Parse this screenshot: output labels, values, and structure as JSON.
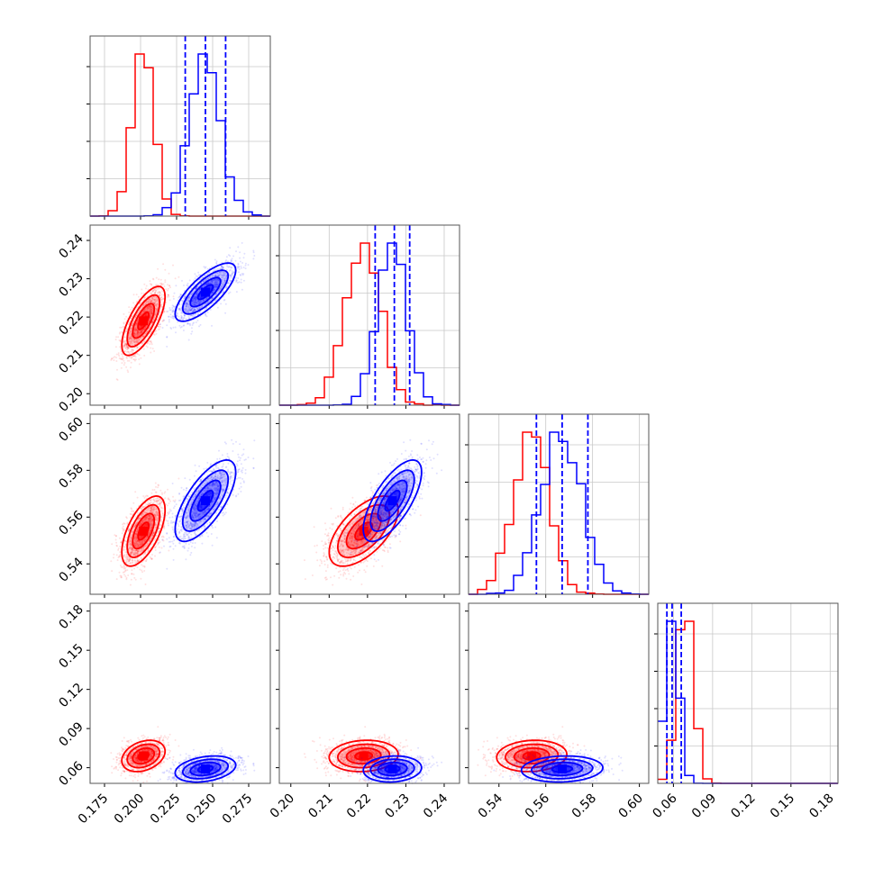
{
  "chart_data": {
    "type": "corner",
    "parameters": [
      {
        "range": [
          0.165,
          0.29
        ],
        "ticks": [
          0.175,
          0.2,
          0.225,
          0.25,
          0.275
        ],
        "tick_labels": [
          "0.175",
          "0.200",
          "0.225",
          "0.250",
          "0.275"
        ]
      },
      {
        "range": [
          0.197,
          0.244
        ],
        "ticks": [
          0.2,
          0.21,
          0.22,
          0.23,
          0.24
        ],
        "tick_labels": [
          "0.20",
          "0.21",
          "0.22",
          "0.23",
          "0.24"
        ]
      },
      {
        "range": [
          0.527,
          0.604
        ],
        "ticks": [
          0.54,
          0.56,
          0.58,
          0.6
        ],
        "tick_labels": [
          "0.54",
          "0.56",
          "0.58",
          "0.60"
        ]
      },
      {
        "range": [
          0.048,
          0.186
        ],
        "ticks": [
          0.06,
          0.09,
          0.12,
          0.15,
          0.18
        ],
        "tick_labels": [
          "0.06",
          "0.09",
          "0.12",
          "0.15",
          "0.18"
        ]
      }
    ],
    "series": [
      {
        "color": "#ff0000",
        "mean": [
          0.202,
          0.219,
          0.554,
          0.069
        ],
        "std": [
          0.0075,
          0.0045,
          0.0075,
          0.006
        ],
        "corr": [
          [
            1,
            0.7,
            0.6,
            0.3
          ],
          [
            0.7,
            1,
            0.6,
            0.1
          ],
          [
            0.6,
            0.6,
            1,
            0.1
          ],
          [
            0.3,
            0.1,
            0.1,
            1
          ]
        ],
        "quantiles": null
      },
      {
        "color": "#0000ff",
        "mean": [
          0.245,
          0.2265,
          0.567,
          0.059
        ],
        "std": [
          0.0105,
          0.0038,
          0.0087,
          0.005
        ],
        "corr": [
          [
            1,
            0.75,
            0.7,
            0.3
          ],
          [
            0.75,
            1,
            0.7,
            0.1
          ],
          [
            0.7,
            0.7,
            1,
            0.1
          ],
          [
            0.3,
            0.1,
            0.1,
            1
          ]
        ],
        "quantiles": [
          [
            0.231,
            0.245,
            0.259
          ],
          [
            0.222,
            0.227,
            0.231
          ],
          [
            0.556,
            0.567,
            0.578
          ],
          [
            0.055,
            0.059,
            0.066
          ]
        ]
      }
    ]
  }
}
